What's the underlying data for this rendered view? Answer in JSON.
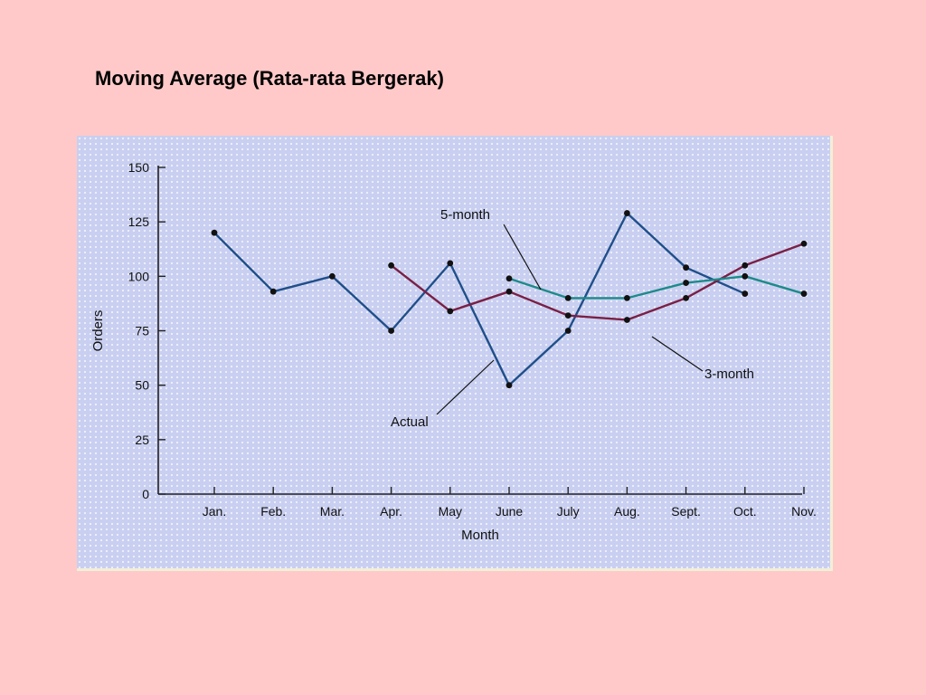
{
  "slide": {
    "title": "Moving Average (Rata-rata Bergerak)"
  },
  "colors": {
    "background": "#ffc9c9",
    "panel": "#c9cff0",
    "actual": "#1f4f8a",
    "three_month": "#7a1f45",
    "five_month": "#1d8a8a",
    "axis": "#222222"
  },
  "chart_data": {
    "type": "line",
    "title": "",
    "xlabel": "Month",
    "ylabel": "Orders",
    "categories": [
      "Jan.",
      "Feb.",
      "Mar.",
      "Apr.",
      "May",
      "June",
      "July",
      "Aug.",
      "Sept.",
      "Oct.",
      "Nov."
    ],
    "ylim": [
      0,
      150
    ],
    "yticks": [
      0,
      25,
      50,
      75,
      100,
      125,
      150
    ],
    "grid": false,
    "legend": "none (series identified by callout labels)",
    "series": [
      {
        "name": "Actual",
        "color": "#1f4f8a",
        "values": [
          120,
          93,
          100,
          75,
          106,
          50,
          75,
          129,
          104,
          92,
          null
        ]
      },
      {
        "name": "3-month",
        "color": "#7a1f45",
        "values": [
          null,
          null,
          null,
          105,
          84,
          93,
          82,
          80,
          90,
          105,
          115
        ]
      },
      {
        "name": "5-month",
        "color": "#1d8a8a",
        "values": [
          null,
          null,
          null,
          null,
          null,
          99,
          90,
          90,
          97,
          100,
          92
        ]
      }
    ],
    "annotations": [
      {
        "text": "5-month",
        "series": "5-month"
      },
      {
        "text": "3-month",
        "series": "3-month"
      },
      {
        "text": "Actual",
        "series": "Actual"
      }
    ]
  }
}
